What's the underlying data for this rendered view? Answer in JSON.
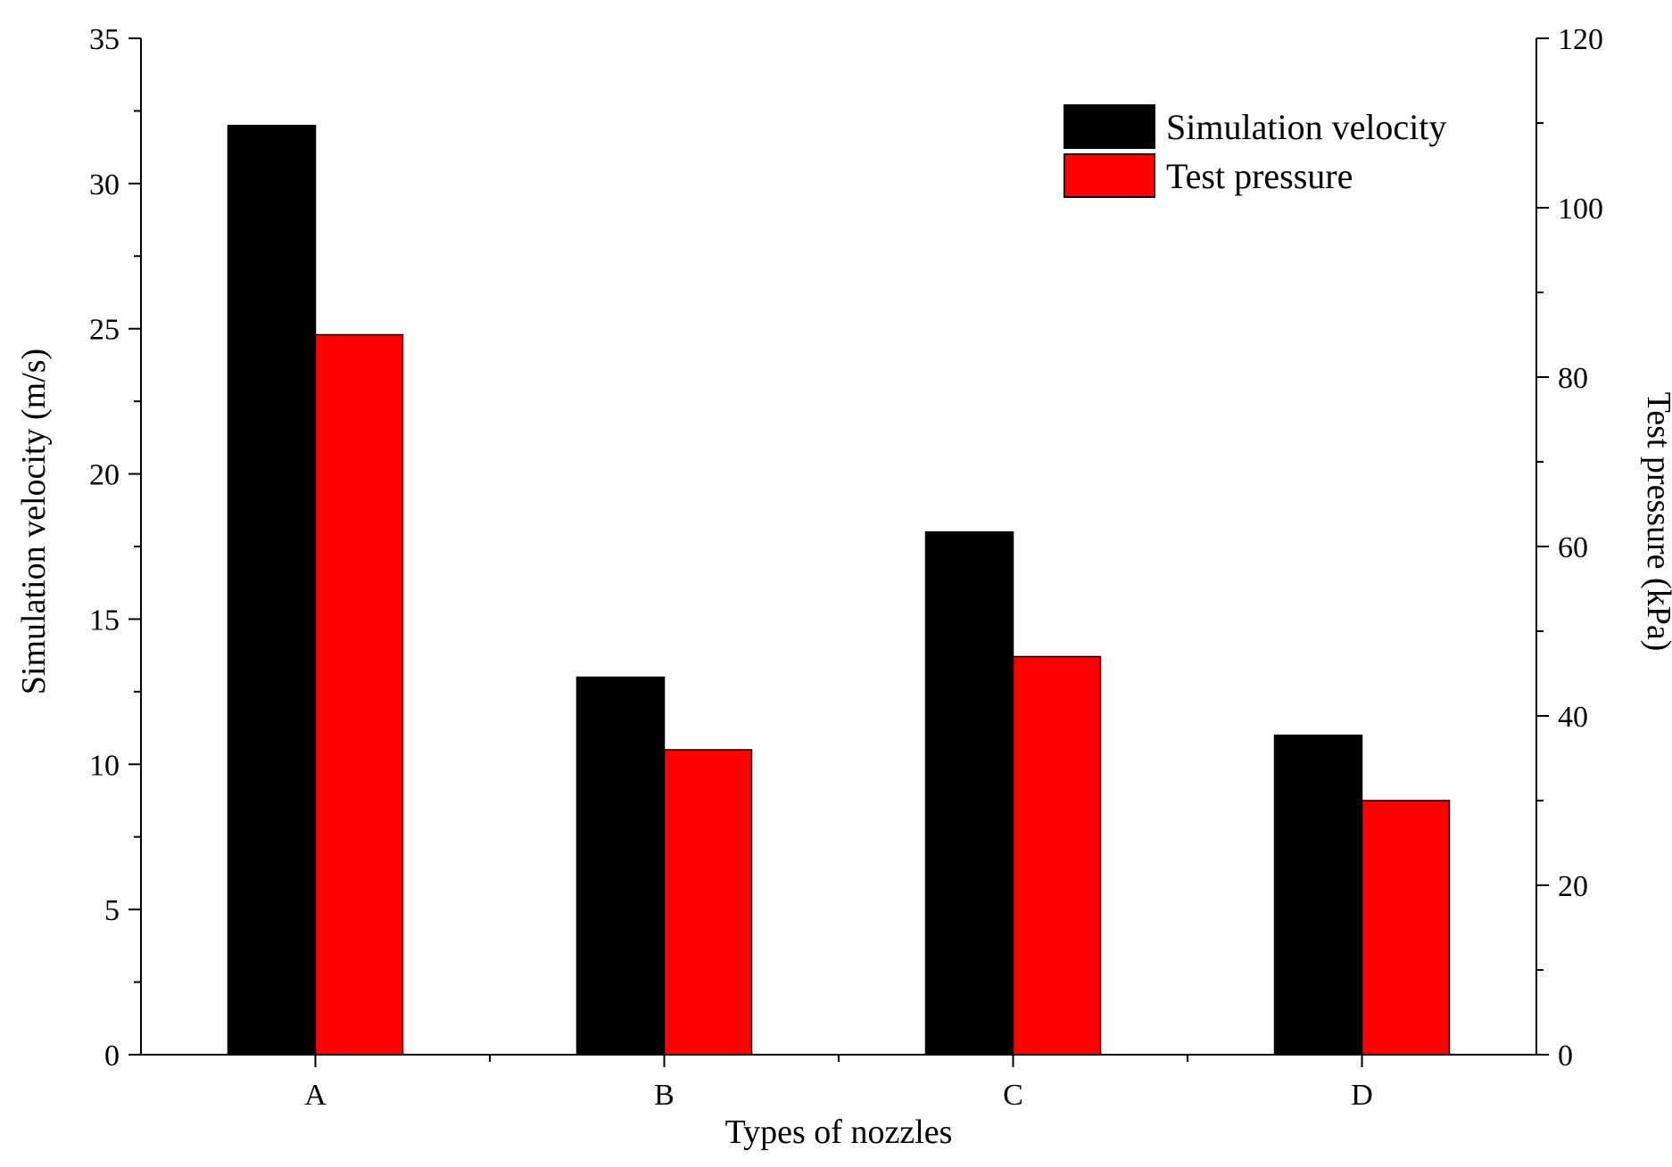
{
  "chart_data": {
    "type": "bar",
    "title": "",
    "categories": [
      "A",
      "B",
      "C",
      "D"
    ],
    "xlabel": "Types of nozzles",
    "ylabel": "Simulation velocity (m/s)",
    "y2label": "Test pressure (kPa)",
    "ylim": [
      0,
      35
    ],
    "y2lim": [
      0,
      120
    ],
    "yticks": [
      0,
      5,
      10,
      15,
      20,
      25,
      30,
      35
    ],
    "y2ticks": [
      0,
      20,
      40,
      60,
      80,
      100,
      120
    ],
    "series": [
      {
        "name": "Simulation velocity",
        "axis": "left",
        "color": "#000000",
        "values": [
          32,
          13,
          18,
          11
        ]
      },
      {
        "name": "Test pressure",
        "axis": "right",
        "color": "#ff0000",
        "values": [
          85,
          36,
          47,
          30
        ]
      }
    ],
    "legend_position": "top-right",
    "grid": false
  }
}
